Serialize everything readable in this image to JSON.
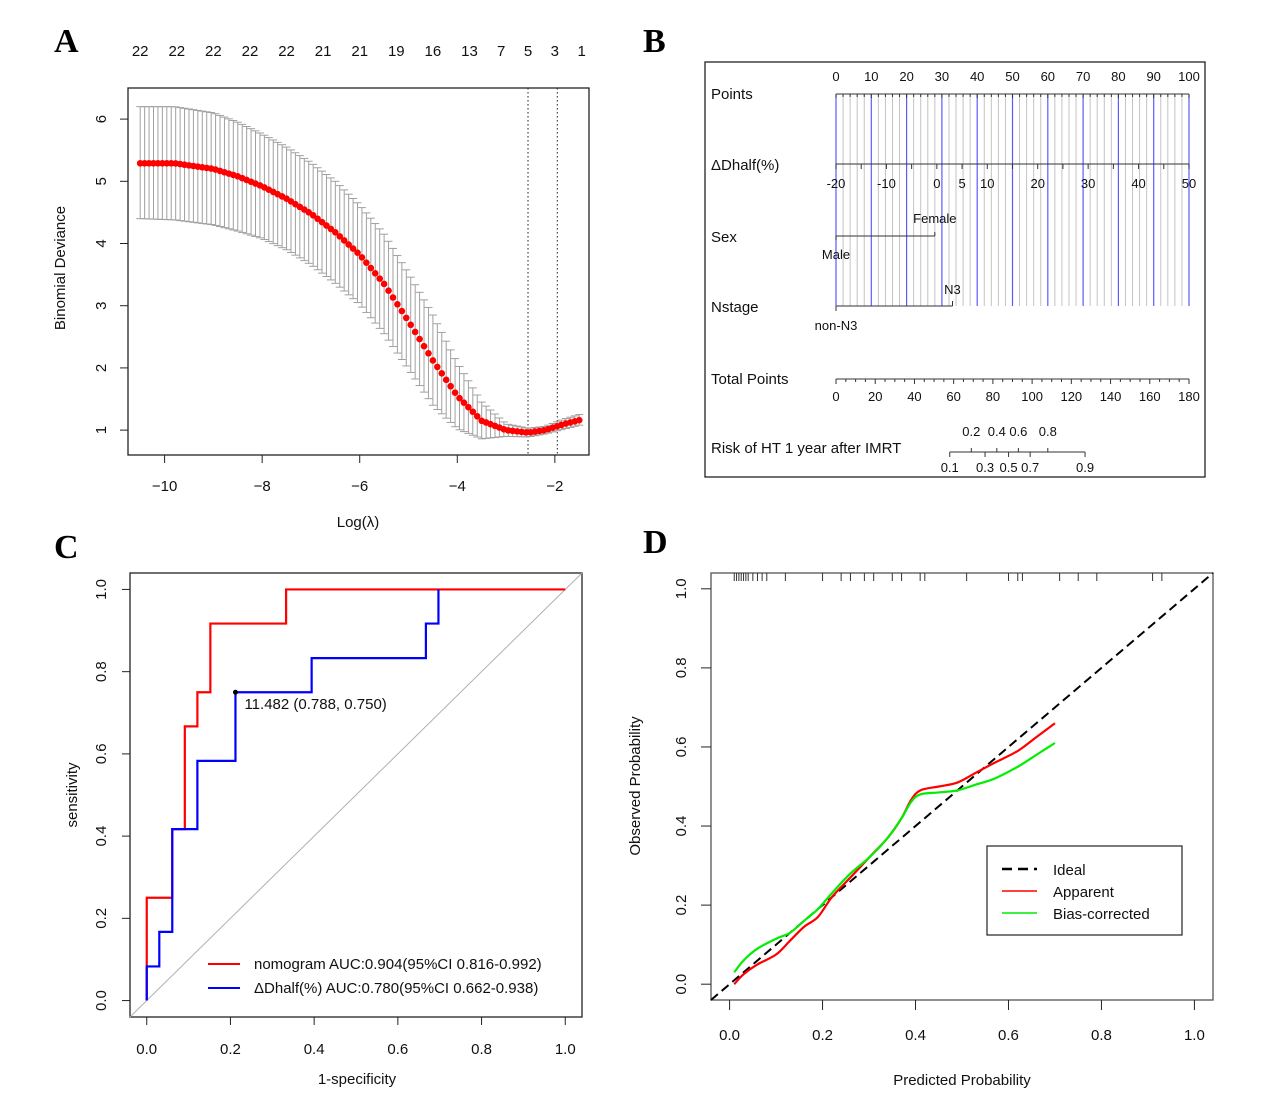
{
  "panel_labels": [
    "A",
    "B",
    "C",
    "D"
  ],
  "chart_data": [
    {
      "id": "A",
      "type": "scatter",
      "title": "",
      "xlabel": "Log(λ)",
      "ylabel": "Binomial Deviance",
      "xlim": [
        -10.75,
        -1.3
      ],
      "ylim": [
        0.6,
        6.5
      ],
      "xticks": [
        -10,
        -8,
        -6,
        -4,
        -2
      ],
      "xtick_labels": [
        "−10",
        "−8",
        "−6",
        "−4",
        "−2"
      ],
      "yticks": [
        1,
        2,
        3,
        4,
        5,
        6
      ],
      "ytick_labels": [
        "1",
        "2",
        "3",
        "4",
        "5",
        "6"
      ],
      "top_axis_labels": [
        "22",
        "22",
        "22",
        "22",
        "22",
        "21",
        "21",
        "19",
        "16",
        "13",
        "7",
        "5",
        "3",
        "1"
      ],
      "top_axis_positions": [
        -10.5,
        -9.75,
        -9.0,
        -8.25,
        -7.5,
        -6.75,
        -6.0,
        -5.25,
        -4.5,
        -3.75,
        -3.1,
        -2.55,
        -2.0,
        -1.45
      ],
      "vlines": [
        -2.55,
        -1.95
      ],
      "series_knots": {
        "x": [
          -10.5,
          -9.8,
          -9.0,
          -8.5,
          -8.0,
          -7.5,
          -7.0,
          -6.5,
          -6.0,
          -5.5,
          -5.0,
          -4.5,
          -4.0,
          -3.5,
          -3.0,
          -2.55,
          -2.2,
          -1.8,
          -1.5
        ],
        "mean": [
          5.29,
          5.29,
          5.2,
          5.08,
          4.92,
          4.72,
          4.48,
          4.18,
          3.82,
          3.35,
          2.75,
          2.12,
          1.55,
          1.15,
          1.0,
          0.96,
          1.0,
          1.1,
          1.16
        ],
        "upper": [
          6.2,
          6.2,
          6.1,
          5.95,
          5.76,
          5.55,
          5.3,
          5.0,
          4.62,
          4.15,
          3.52,
          2.85,
          2.08,
          1.45,
          1.1,
          1.03,
          1.06,
          1.18,
          1.25
        ],
        "lower": [
          4.4,
          4.38,
          4.3,
          4.2,
          4.08,
          3.9,
          3.66,
          3.36,
          3.02,
          2.55,
          1.98,
          1.4,
          1.02,
          0.86,
          0.9,
          0.89,
          0.94,
          1.02,
          1.08
        ]
      },
      "n_points": 100,
      "point_color": "#ff0000",
      "errorbar_color": "#a0a0a0"
    },
    {
      "id": "B",
      "type": "table",
      "title": "Nomogram",
      "rows": [
        {
          "label": "Points",
          "scale": {
            "min": 0,
            "max": 100,
            "ticks": [
              0,
              10,
              20,
              30,
              40,
              50,
              60,
              70,
              80,
              90,
              100
            ],
            "labels": [
              "0",
              "10",
              "20",
              "30",
              "40",
              "50",
              "60",
              "70",
              "80",
              "90",
              "100"
            ],
            "minor_step": 2
          }
        },
        {
          "label": "ΔDhalf(%)",
          "scale": {
            "min": -20,
            "max": 50,
            "labels": [
              "-20",
              "-10",
              "0",
              "5",
              "10",
              "20",
              "30",
              "40",
              "50"
            ],
            "label_values": [
              -20,
              -10,
              0,
              5,
              10,
              20,
              30,
              40,
              50
            ],
            "points_per_unit": 1.4286
          }
        },
        {
          "label": "Sex",
          "categories": [
            {
              "name": "Male",
              "points": 0
            },
            {
              "name": "Female",
              "points": 28
            }
          ]
        },
        {
          "label": "Nstage",
          "categories": [
            {
              "name": "non-N3",
              "points": 0
            },
            {
              "name": "N3",
              "points": 33
            }
          ]
        },
        {
          "label": "Total Points",
          "scale": {
            "min": 0,
            "max": 180,
            "ticks": [
              0,
              20,
              40,
              60,
              80,
              100,
              120,
              140,
              160,
              180
            ],
            "labels": [
              "0",
              "20",
              "40",
              "60",
              "80",
              "100",
              "120",
              "140",
              "160",
              "180"
            ],
            "minor_step": 5
          }
        },
        {
          "label": "Risk of HT 1 year after IMRT",
          "scale": {
            "values": [
              0.1,
              0.2,
              0.3,
              0.4,
              0.5,
              0.6,
              0.7,
              0.8,
              0.9
            ],
            "total_points": [
              58,
              69,
              76,
              82,
              88,
              93,
              99,
              108,
              127
            ],
            "labels_top": [
              "0.2",
              "0.4",
              "0.6",
              "0.8"
            ],
            "labels_bottom": [
              "0.1",
              "0.3",
              "0.5",
              "0.7",
              "0.9"
            ]
          }
        }
      ],
      "vline_colors": {
        "major": "#3333ff",
        "minor": "#b0b0b0"
      }
    },
    {
      "id": "C",
      "type": "line",
      "title": "",
      "xlabel": "1-specificity",
      "ylabel": "sensitivity",
      "xlim": [
        -0.04,
        1.04
      ],
      "ylim": [
        -0.04,
        1.04
      ],
      "xticks": [
        0,
        0.2,
        0.4,
        0.6,
        0.8,
        1.0
      ],
      "xtick_labels": [
        "0.0",
        "0.2",
        "0.4",
        "0.6",
        "0.8",
        "1.0"
      ],
      "yticks": [
        0,
        0.2,
        0.4,
        0.6,
        0.8,
        1.0
      ],
      "ytick_labels": [
        "0.0",
        "0.2",
        "0.4",
        "0.6",
        "0.8",
        "1.0"
      ],
      "series": [
        {
          "name": "nomogram",
          "color": "#ff0000",
          "x": [
            0,
            0,
            0.061,
            0.061,
            0.091,
            0.091,
            0.121,
            0.121,
            0.152,
            0.152,
            0.333,
            0.333,
            1.0
          ],
          "y": [
            0,
            0.25,
            0.25,
            0.417,
            0.417,
            0.667,
            0.667,
            0.75,
            0.75,
            0.917,
            0.917,
            1.0,
            1.0
          ]
        },
        {
          "name": "ΔDhalf(%)",
          "color": "#0000ff",
          "x": [
            0,
            0.0,
            0.03,
            0.03,
            0.061,
            0.061,
            0.121,
            0.121,
            0.212,
            0.212,
            0.394,
            0.394,
            0.667,
            0.667,
            0.697,
            0.697
          ],
          "y": [
            0,
            0.083,
            0.083,
            0.167,
            0.167,
            0.417,
            0.417,
            0.583,
            0.583,
            0.75,
            0.75,
            0.833,
            0.833,
            0.917,
            0.917,
            1.0
          ]
        }
      ],
      "diagonal": true,
      "annotation": {
        "text": "11.482 (0.788, 0.750)",
        "x": 0.212,
        "y": 0.75
      },
      "legend": {
        "placement": "bottom-right",
        "entries": [
          {
            "label": "nomogram AUC:0.904(95%CI 0.816-0.992)",
            "color": "#ff0000"
          },
          {
            "label": "ΔDhalf(%)  AUC:0.780(95%CI 0.662-0.938)",
            "color": "#0000ff"
          }
        ]
      }
    },
    {
      "id": "D",
      "type": "line",
      "title": "",
      "xlabel": "Predicted Probability",
      "ylabel": "Observed Probability",
      "xlim": [
        -0.04,
        1.04
      ],
      "ylim": [
        -0.04,
        1.04
      ],
      "xticks": [
        0,
        0.2,
        0.4,
        0.6,
        0.8,
        1.0
      ],
      "xtick_labels": [
        "0.0",
        "0.2",
        "0.4",
        "0.6",
        "0.8",
        "1.0"
      ],
      "yticks": [
        0,
        0.2,
        0.4,
        0.6,
        0.8,
        1.0
      ],
      "ytick_labels": [
        "0.0",
        "0.2",
        "0.4",
        "0.6",
        "0.8",
        "1.0"
      ],
      "rug": [
        0.01,
        0.015,
        0.02,
        0.025,
        0.03,
        0.035,
        0.04,
        0.05,
        0.06,
        0.07,
        0.08,
        0.12,
        0.2,
        0.24,
        0.26,
        0.29,
        0.31,
        0.35,
        0.37,
        0.41,
        0.42,
        0.51,
        0.6,
        0.62,
        0.63,
        0.71,
        0.75,
        0.79,
        0.91,
        0.93
      ],
      "series": [
        {
          "name": "Ideal",
          "color": "#000000",
          "dash": true,
          "x": [
            -0.04,
            1.04
          ],
          "y": [
            -0.04,
            1.04
          ]
        },
        {
          "name": "Apparent",
          "color": "#ff0000",
          "x": [
            0.01,
            0.03,
            0.06,
            0.1,
            0.13,
            0.16,
            0.19,
            0.22,
            0.26,
            0.3,
            0.34,
            0.37,
            0.39,
            0.41,
            0.45,
            0.49,
            0.53,
            0.57,
            0.62,
            0.66,
            0.7
          ],
          "y": [
            0.0,
            0.025,
            0.05,
            0.075,
            0.11,
            0.145,
            0.17,
            0.22,
            0.27,
            0.32,
            0.37,
            0.42,
            0.465,
            0.49,
            0.5,
            0.51,
            0.535,
            0.56,
            0.59,
            0.625,
            0.66
          ]
        },
        {
          "name": "Bias-corrected",
          "color": "#00ee00",
          "x": [
            0.01,
            0.03,
            0.06,
            0.1,
            0.13,
            0.16,
            0.19,
            0.22,
            0.26,
            0.3,
            0.34,
            0.37,
            0.39,
            0.41,
            0.45,
            0.49,
            0.53,
            0.57,
            0.62,
            0.66,
            0.7
          ],
          "y": [
            0.03,
            0.06,
            0.09,
            0.115,
            0.13,
            0.16,
            0.19,
            0.23,
            0.28,
            0.32,
            0.37,
            0.42,
            0.46,
            0.48,
            0.485,
            0.49,
            0.505,
            0.52,
            0.55,
            0.58,
            0.61
          ]
        }
      ],
      "legend": {
        "placement": "right",
        "entries": [
          {
            "label": "Ideal",
            "color": "#000000",
            "dash": true
          },
          {
            "label": "Apparent",
            "color": "#ff0000"
          },
          {
            "label": "Bias-corrected",
            "color": "#00ee00"
          }
        ]
      }
    }
  ]
}
